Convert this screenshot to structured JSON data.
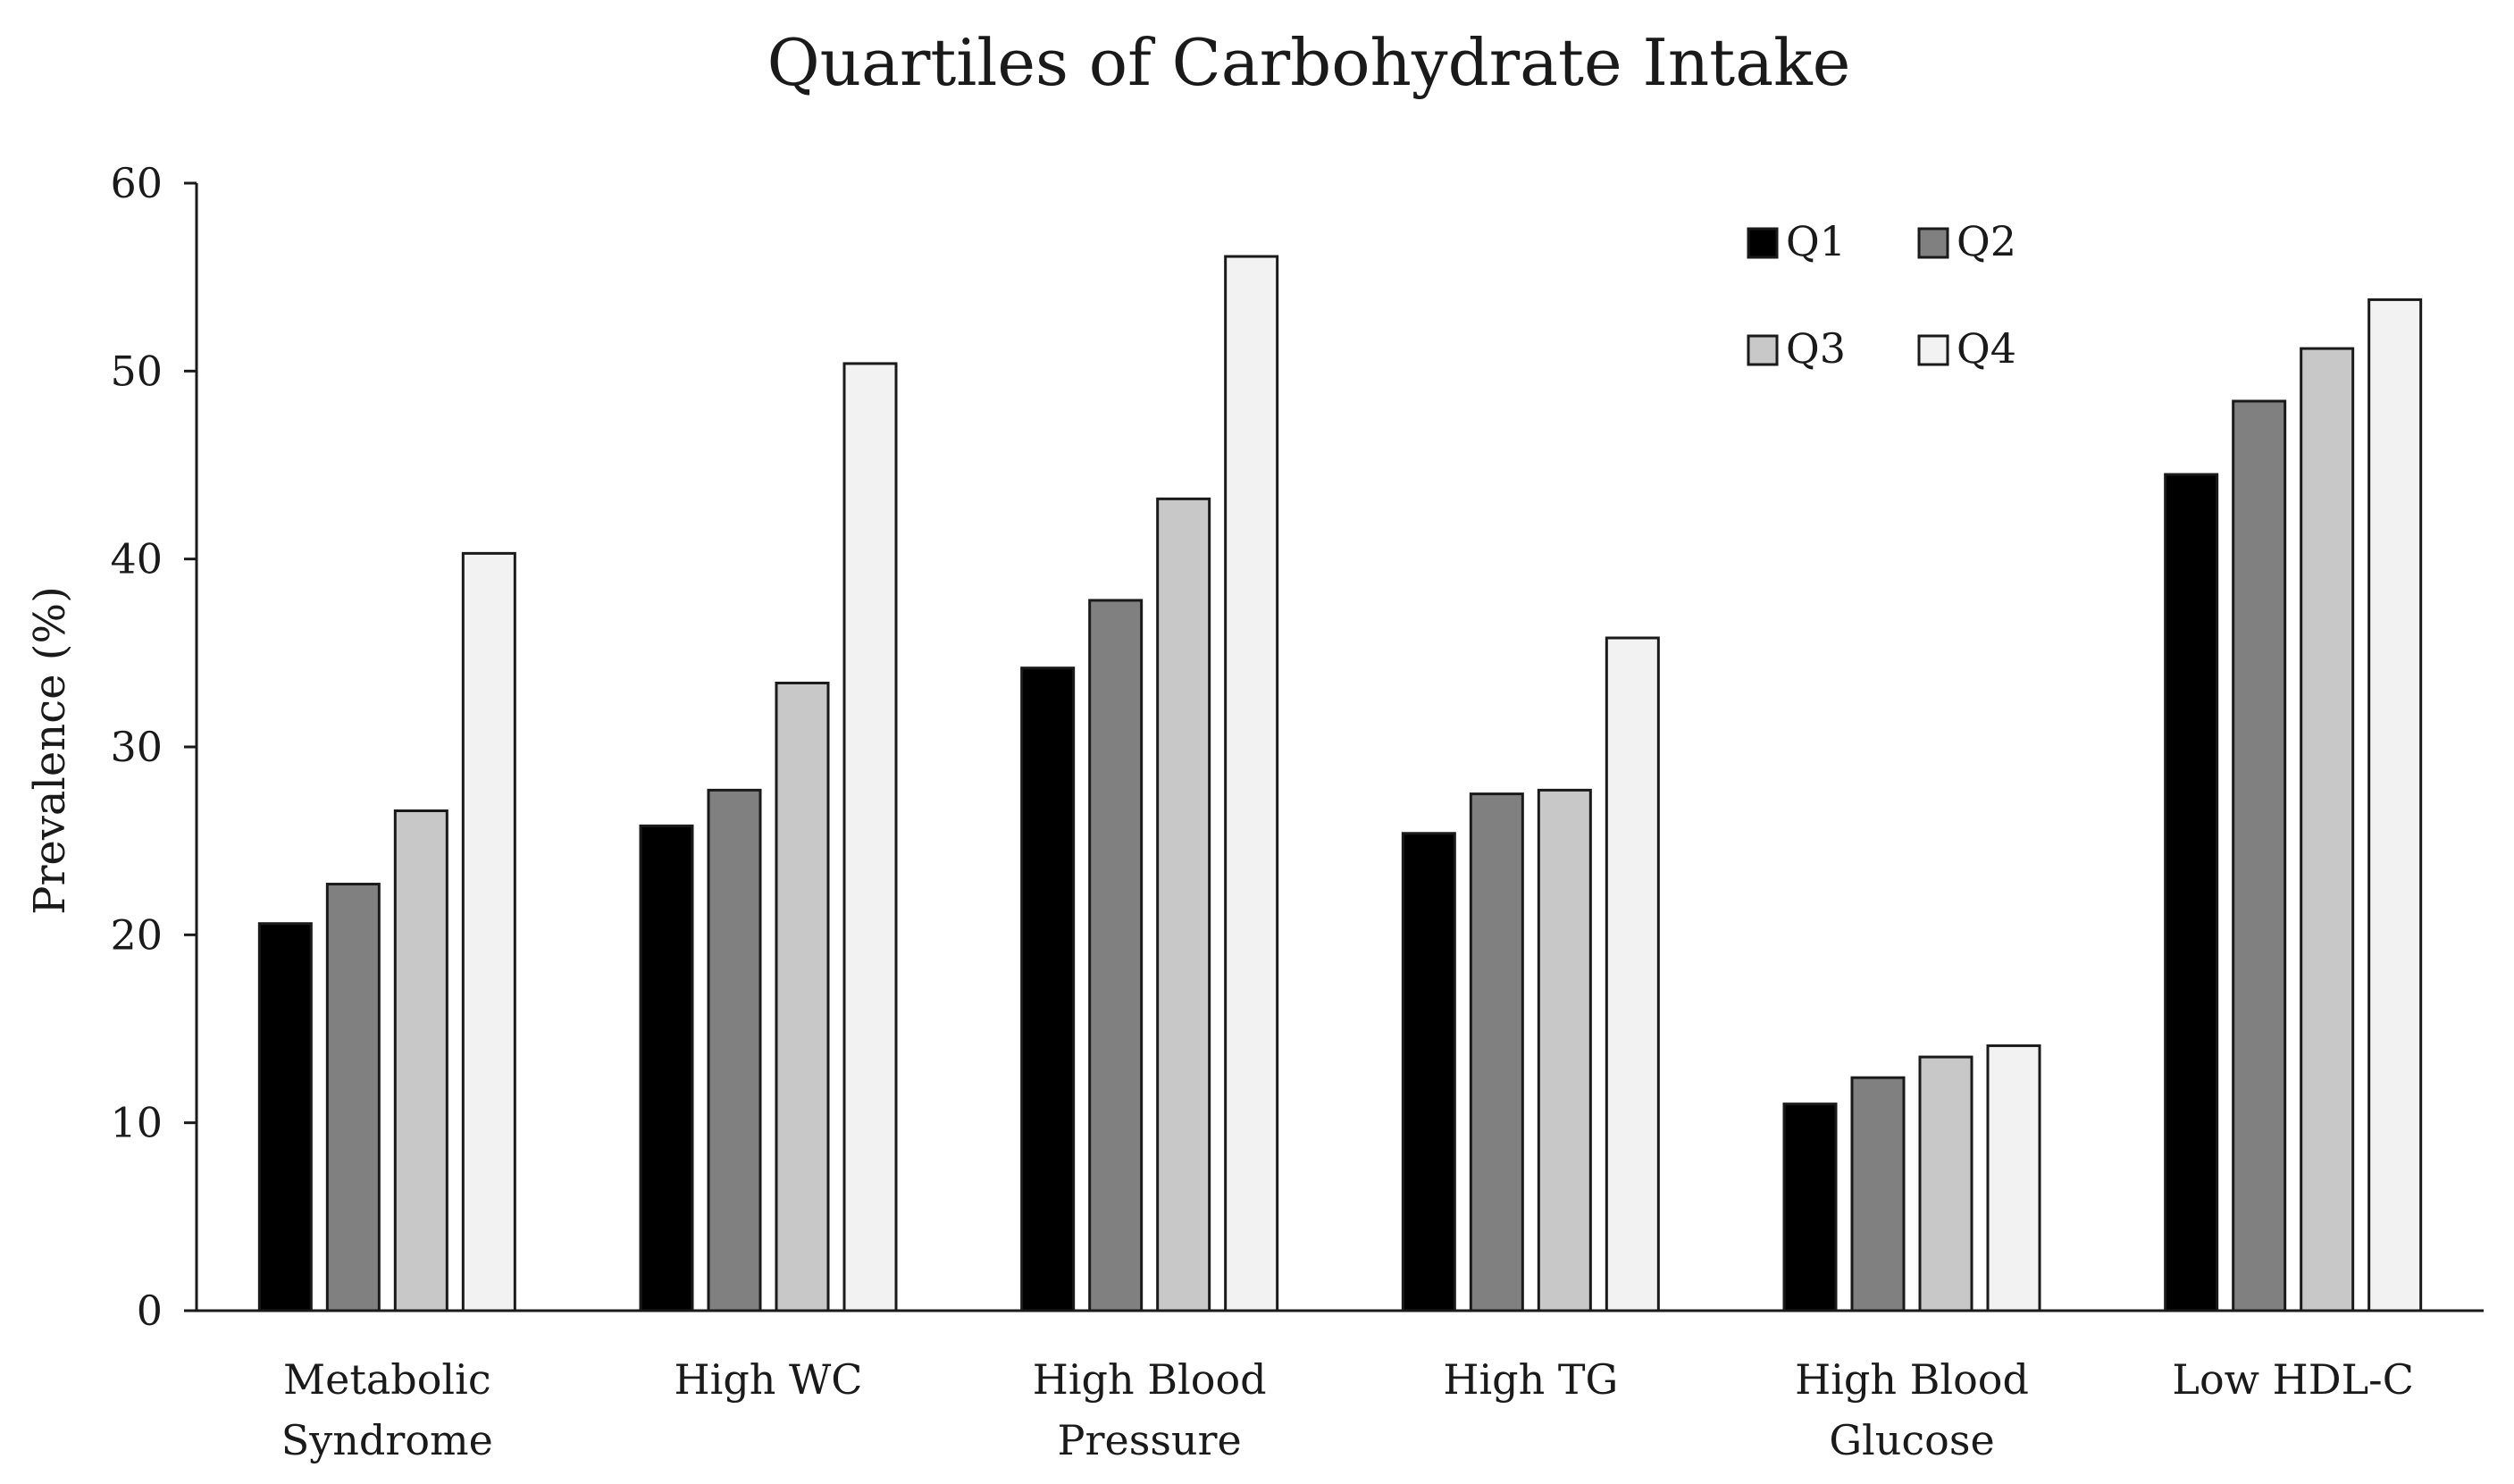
{
  "chart_data": {
    "type": "bar",
    "title": "Quartiles of Carbohydrate Intake",
    "xlabel": "",
    "ylabel": "Prevalence (%)",
    "ylim": [
      0,
      60
    ],
    "yticks": [
      0,
      10,
      20,
      30,
      40,
      50,
      60
    ],
    "grid": false,
    "legend_position": "top-right",
    "categories": [
      [
        "Metabolic",
        "Syndrome"
      ],
      [
        "High WC"
      ],
      [
        "High Blood",
        "Pressure"
      ],
      [
        "High TG"
      ],
      [
        "High Blood",
        "Glucose"
      ],
      [
        "Low HDL-C"
      ]
    ],
    "series": [
      {
        "name": "Q1",
        "color": "#000000",
        "values": [
          20.6,
          25.8,
          34.2,
          25.4,
          11.0,
          44.5
        ]
      },
      {
        "name": "Q2",
        "color": "#808080",
        "values": [
          22.7,
          27.7,
          37.8,
          27.5,
          12.4,
          48.4
        ]
      },
      {
        "name": "Q3",
        "color": "#c8c8c8",
        "values": [
          26.6,
          33.4,
          43.2,
          27.7,
          13.5,
          51.2
        ]
      },
      {
        "name": "Q4",
        "color": "#f2f2f2",
        "values": [
          40.3,
          50.4,
          56.1,
          35.8,
          14.1,
          53.8
        ]
      }
    ]
  }
}
